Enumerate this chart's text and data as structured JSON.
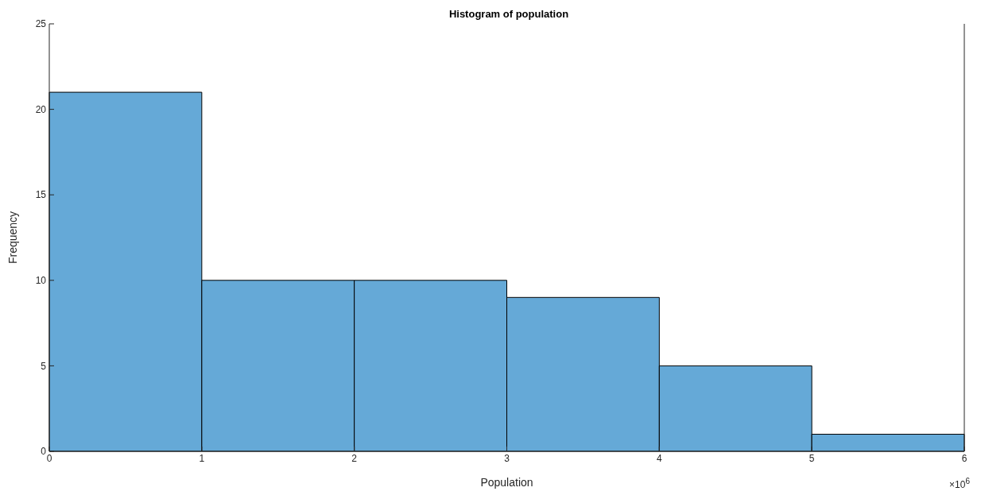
{
  "chart_data": {
    "type": "histogram",
    "title": "Histogram of population",
    "xlabel": "Population",
    "ylabel": "Frequency",
    "bins": [
      0,
      1,
      2,
      3,
      4,
      5,
      6
    ],
    "values": [
      21,
      10,
      10,
      9,
      5,
      1
    ],
    "color": "#65a9d7",
    "xlim": [
      0,
      6
    ],
    "xticks": [
      0,
      1,
      2,
      3,
      4,
      5,
      6
    ],
    "ylim": [
      0,
      25
    ],
    "yticks": [
      0,
      5,
      10,
      15,
      20,
      25
    ],
    "annotations": [
      "×10$^{6}$"
    ]
  }
}
